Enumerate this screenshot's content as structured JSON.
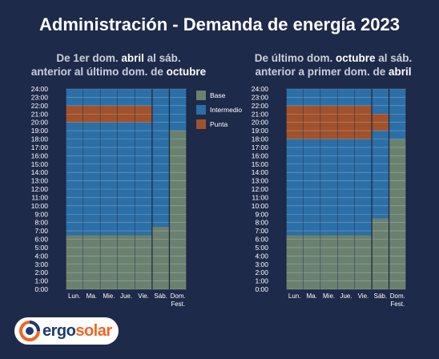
{
  "title": "Administración - Demanda de energía 2023",
  "colors": {
    "background": "#1e2a4a",
    "base": "#6b8170",
    "intermedio": "#2c6fa6",
    "punta": "#a0522d",
    "logo_orange": "#f26522",
    "logo_blue": "#1e3a6e"
  },
  "legend": [
    "Base",
    "Intermedio",
    "Punta"
  ],
  "logo": {
    "brand": "ergosolar"
  },
  "chart_data": [
    {
      "type": "bar",
      "subtitle_parts": [
        {
          "text": "De ",
          "bold": false
        },
        {
          "text": "1er dom. ",
          "bold": false
        },
        {
          "text": "abril",
          "bold": true
        },
        {
          "text": " al sáb.",
          "bold": false
        },
        {
          "text": "\n",
          "bold": false
        },
        {
          "text": "anterior al último dom. de ",
          "bold": false
        },
        {
          "text": "octubre",
          "bold": true
        }
      ],
      "subtitle": "De 1er dom. abril al sáb. anterior al último dom. de octubre",
      "categories": [
        [
          "Lun."
        ],
        [
          "Ma."
        ],
        [
          "Mie."
        ],
        [
          "Jue."
        ],
        [
          "Vie."
        ],
        [
          "Sáb."
        ],
        [
          "Dom.",
          "Fest."
        ]
      ],
      "y_ticks": [
        "0:00",
        "1:00",
        "2:00",
        "3:00",
        "4:00",
        "5:00",
        "6:00",
        "7:00",
        "8:00",
        "9:00",
        "10:00",
        "11:00",
        "12:00",
        "13:00",
        "14:00",
        "15:00",
        "16:00",
        "17:00",
        "18:00",
        "19:00",
        "20:00",
        "21:00",
        "22:00",
        "23:00",
        "24:00"
      ],
      "ylim": [
        0,
        24
      ],
      "legend": "top-right",
      "stacks": [
        [
          {
            "tariff": "Base",
            "from": 0,
            "to": 6.5
          },
          {
            "tariff": "Intermedio",
            "from": 6.5,
            "to": 20
          },
          {
            "tariff": "Punta",
            "from": 20,
            "to": 22
          },
          {
            "tariff": "Intermedio",
            "from": 22,
            "to": 24
          }
        ],
        [
          {
            "tariff": "Base",
            "from": 0,
            "to": 6.5
          },
          {
            "tariff": "Intermedio",
            "from": 6.5,
            "to": 20
          },
          {
            "tariff": "Punta",
            "from": 20,
            "to": 22
          },
          {
            "tariff": "Intermedio",
            "from": 22,
            "to": 24
          }
        ],
        [
          {
            "tariff": "Base",
            "from": 0,
            "to": 6.5
          },
          {
            "tariff": "Intermedio",
            "from": 6.5,
            "to": 20
          },
          {
            "tariff": "Punta",
            "from": 20,
            "to": 22
          },
          {
            "tariff": "Intermedio",
            "from": 22,
            "to": 24
          }
        ],
        [
          {
            "tariff": "Base",
            "from": 0,
            "to": 6.5
          },
          {
            "tariff": "Intermedio",
            "from": 6.5,
            "to": 20
          },
          {
            "tariff": "Punta",
            "from": 20,
            "to": 22
          },
          {
            "tariff": "Intermedio",
            "from": 22,
            "to": 24
          }
        ],
        [
          {
            "tariff": "Base",
            "from": 0,
            "to": 6.5
          },
          {
            "tariff": "Intermedio",
            "from": 6.5,
            "to": 20
          },
          {
            "tariff": "Punta",
            "from": 20,
            "to": 22
          },
          {
            "tariff": "Intermedio",
            "from": 22,
            "to": 24
          }
        ],
        [
          {
            "tariff": "Base",
            "from": 0,
            "to": 7.5
          },
          {
            "tariff": "Intermedio",
            "from": 7.5,
            "to": 24
          }
        ],
        [
          {
            "tariff": "Base",
            "from": 0,
            "to": 19
          },
          {
            "tariff": "Intermedio",
            "from": 19,
            "to": 24
          }
        ]
      ]
    },
    {
      "type": "bar",
      "subtitle_parts": [
        {
          "text": "De último dom. ",
          "bold": false
        },
        {
          "text": "octubre",
          "bold": true
        },
        {
          "text": " al sáb.",
          "bold": false
        },
        {
          "text": "\n",
          "bold": false
        },
        {
          "text": "anterior a primer dom. de ",
          "bold": false
        },
        {
          "text": "abril",
          "bold": true
        }
      ],
      "subtitle": "De último dom. octubre al sáb. anterior a primer dom. de abril",
      "categories": [
        [
          "Lun."
        ],
        [
          "Ma."
        ],
        [
          "Mie."
        ],
        [
          "Jue."
        ],
        [
          "Vie."
        ],
        [
          "Sáb."
        ],
        [
          "Dom.",
          "Fest."
        ]
      ],
      "y_ticks": [
        "0:00",
        "1:00",
        "2:00",
        "3:00",
        "4:00",
        "5:00",
        "6:00",
        "7:00",
        "8:00",
        "9:00",
        "10:00",
        "11:00",
        "12:00",
        "13:00",
        "14:00",
        "15:00",
        "16:00",
        "17:00",
        "18:00",
        "19:00",
        "20:00",
        "21:00",
        "22:00",
        "23:00",
        "24:00"
      ],
      "ylim": [
        0,
        24
      ],
      "stacks": [
        [
          {
            "tariff": "Base",
            "from": 0,
            "to": 6.5
          },
          {
            "tariff": "Intermedio",
            "from": 6.5,
            "to": 18
          },
          {
            "tariff": "Punta",
            "from": 18,
            "to": 22
          },
          {
            "tariff": "Intermedio",
            "from": 22,
            "to": 24
          }
        ],
        [
          {
            "tariff": "Base",
            "from": 0,
            "to": 6.5
          },
          {
            "tariff": "Intermedio",
            "from": 6.5,
            "to": 18
          },
          {
            "tariff": "Punta",
            "from": 18,
            "to": 22
          },
          {
            "tariff": "Intermedio",
            "from": 22,
            "to": 24
          }
        ],
        [
          {
            "tariff": "Base",
            "from": 0,
            "to": 6.5
          },
          {
            "tariff": "Intermedio",
            "from": 6.5,
            "to": 18
          },
          {
            "tariff": "Punta",
            "from": 18,
            "to": 22
          },
          {
            "tariff": "Intermedio",
            "from": 22,
            "to": 24
          }
        ],
        [
          {
            "tariff": "Base",
            "from": 0,
            "to": 6.5
          },
          {
            "tariff": "Intermedio",
            "from": 6.5,
            "to": 18
          },
          {
            "tariff": "Punta",
            "from": 18,
            "to": 22
          },
          {
            "tariff": "Intermedio",
            "from": 22,
            "to": 24
          }
        ],
        [
          {
            "tariff": "Base",
            "from": 0,
            "to": 6.5
          },
          {
            "tariff": "Intermedio",
            "from": 6.5,
            "to": 18
          },
          {
            "tariff": "Punta",
            "from": 18,
            "to": 22
          },
          {
            "tariff": "Intermedio",
            "from": 22,
            "to": 24
          }
        ],
        [
          {
            "tariff": "Base",
            "from": 0,
            "to": 8.5
          },
          {
            "tariff": "Intermedio",
            "from": 8.5,
            "to": 19
          },
          {
            "tariff": "Punta",
            "from": 19,
            "to": 21
          },
          {
            "tariff": "Intermedio",
            "from": 21,
            "to": 24
          }
        ],
        [
          {
            "tariff": "Base",
            "from": 0,
            "to": 18
          },
          {
            "tariff": "Intermedio",
            "from": 18,
            "to": 24
          }
        ]
      ]
    }
  ]
}
